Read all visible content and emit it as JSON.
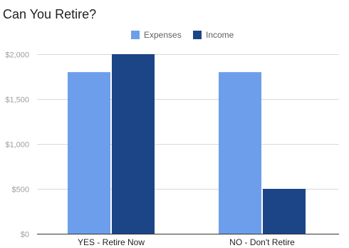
{
  "chart_data": {
    "type": "bar",
    "title": "Can You Retire?",
    "xlabel": "",
    "ylabel": "",
    "categories": [
      "YES - Retire Now",
      "NO - Don't Retire"
    ],
    "series": [
      {
        "name": "Expenses",
        "values": [
          1800,
          1800
        ],
        "color": "#6d9eeb"
      },
      {
        "name": "Income",
        "values": [
          2000,
          500
        ],
        "color": "#1c4587"
      }
    ],
    "ylim": [
      0,
      2000
    ],
    "yticks": [
      0,
      500,
      1000,
      1500,
      2000
    ],
    "ytick_labels": [
      "$0",
      "$500",
      "$1,000",
      "$1,500",
      "$2,000"
    ],
    "grid": true,
    "legend_position": "top-center"
  }
}
